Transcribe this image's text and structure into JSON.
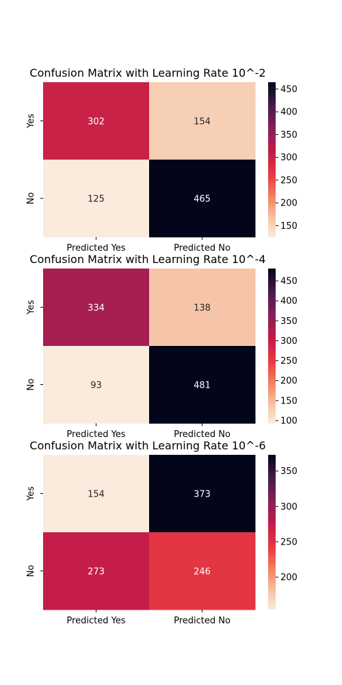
{
  "chart_data": [
    {
      "type": "heatmap",
      "title": "Confusion Matrix with Learning Rate 10^-2",
      "x_categories": [
        "Predicted Yes",
        "Predicted No"
      ],
      "y_categories": [
        "Yes",
        "No"
      ],
      "values": [
        [
          302,
          154
        ],
        [
          125,
          465
        ]
      ],
      "colorbar": {
        "min": 125,
        "max": 465,
        "ticks": [
          150,
          200,
          250,
          300,
          350,
          400,
          450
        ]
      },
      "colormap": "rocket_r"
    },
    {
      "type": "heatmap",
      "title": "Confusion Matrix with Learning Rate 10^-4",
      "x_categories": [
        "Predicted Yes",
        "Predicted No"
      ],
      "y_categories": [
        "Yes",
        "No"
      ],
      "values": [
        [
          334,
          138
        ],
        [
          93,
          481
        ]
      ],
      "colorbar": {
        "min": 93,
        "max": 481,
        "ticks": [
          100,
          150,
          200,
          250,
          300,
          350,
          400,
          450
        ]
      },
      "colormap": "rocket_r"
    },
    {
      "type": "heatmap",
      "title": "Confusion Matrix with Learning Rate 10^-6",
      "x_categories": [
        "Predicted Yes",
        "Predicted No"
      ],
      "y_categories": [
        "Yes",
        "No"
      ],
      "values": [
        [
          154,
          373
        ],
        [
          273,
          246
        ]
      ],
      "colorbar": {
        "min": 154,
        "max": 373,
        "ticks": [
          200,
          250,
          300,
          350
        ]
      },
      "colormap": "rocket_r"
    }
  ]
}
